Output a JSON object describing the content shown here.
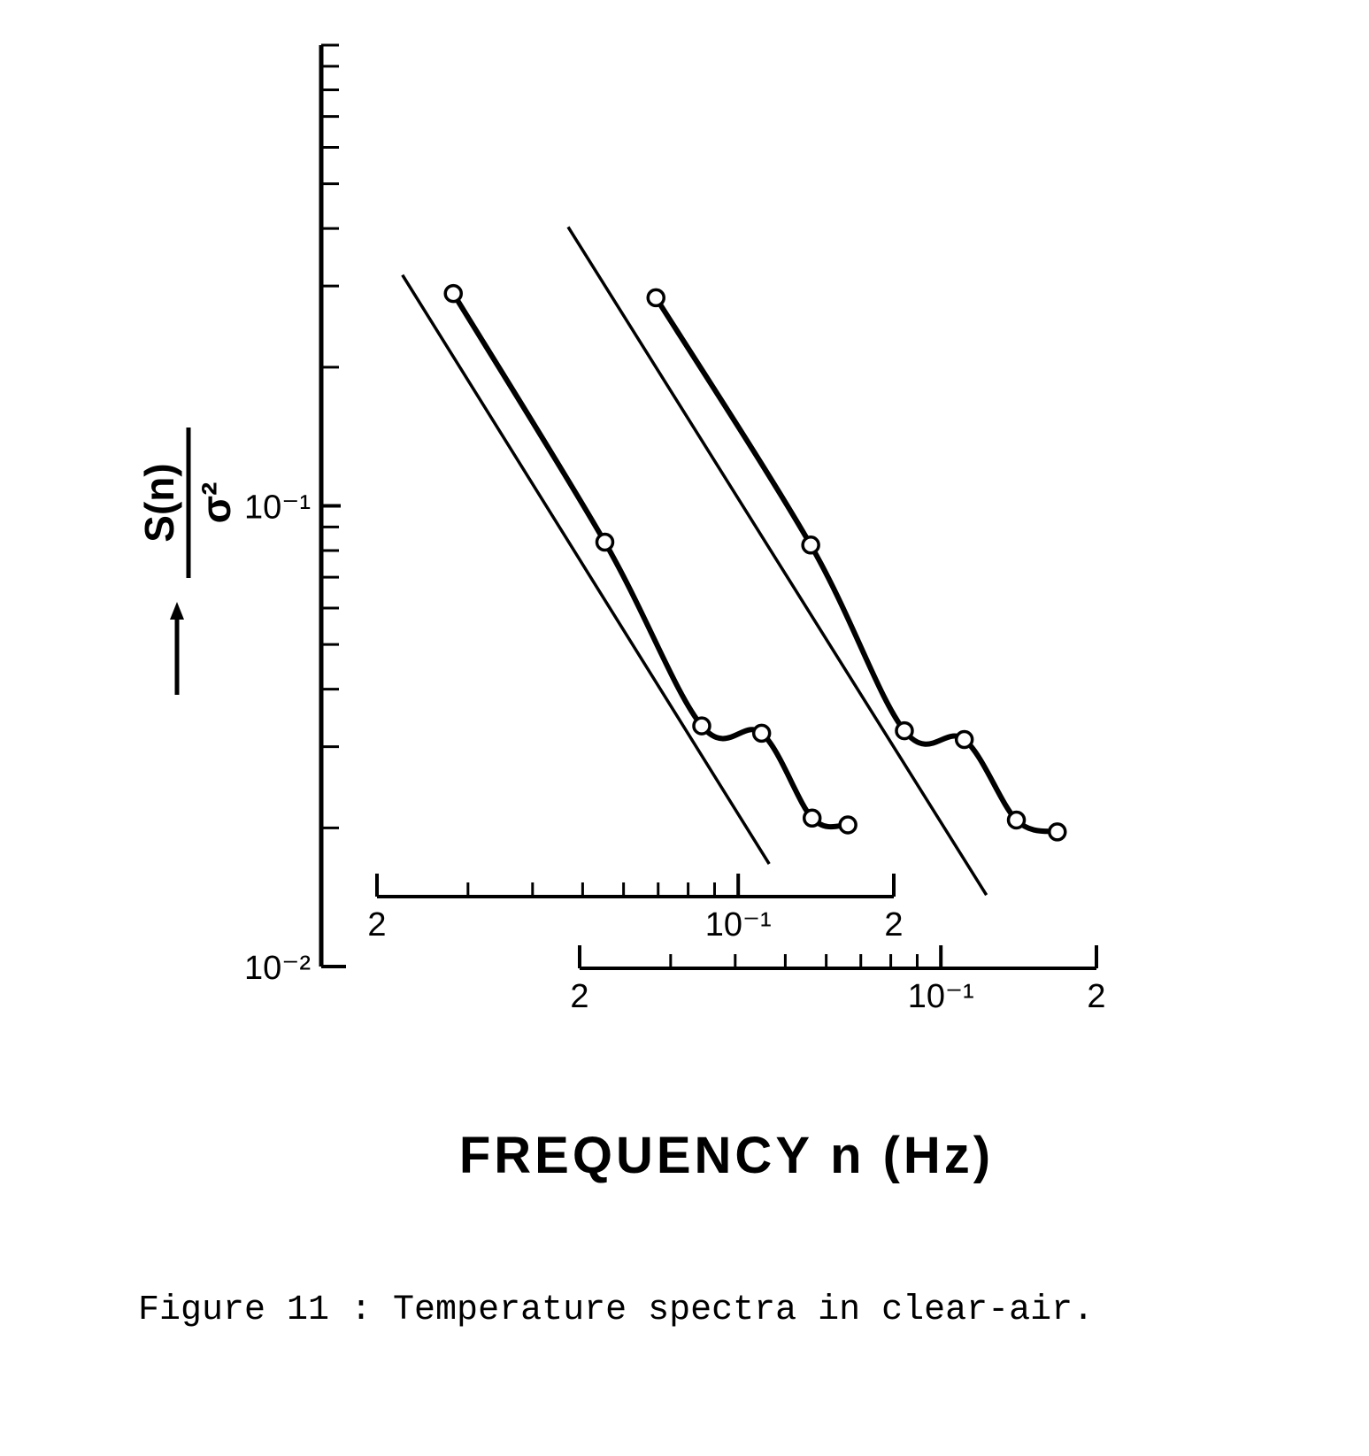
{
  "chart_data": {
    "type": "line",
    "log_x": true,
    "log_y": true,
    "xlabel": "FREQUENCY n (Hz)",
    "ylabel": {
      "numerator": "S(n)",
      "denominator": "σ²"
    },
    "caption": "Figure 11 : Temperature spectra in clear-air.",
    "ylim": [
      0.01,
      1
    ],
    "yticks": [
      {
        "value": 0.1,
        "label": "10⁻¹"
      },
      {
        "value": 0.01,
        "label": "10⁻²"
      }
    ],
    "yminorticks": [
      0.02,
      0.03,
      0.04,
      0.05,
      0.06,
      0.07,
      0.08,
      0.09,
      0.2,
      0.3,
      0.4,
      0.5,
      0.6,
      0.7,
      0.8,
      0.9,
      1
    ],
    "x_axes": [
      {
        "xlim": [
          0.02,
          0.2
        ],
        "xticks": [
          {
            "value": 0.02,
            "label": "2"
          },
          {
            "value": 0.1,
            "label": "10⁻¹"
          },
          {
            "value": 0.2,
            "label": "2"
          }
        ],
        "xminorticks": [
          0.03,
          0.04,
          0.05,
          0.06,
          0.07,
          0.08,
          0.09
        ]
      },
      {
        "xlim": [
          0.02,
          0.2
        ],
        "xticks": [
          {
            "value": 0.02,
            "label": "2"
          },
          {
            "value": 0.1,
            "label": "10⁻¹"
          },
          {
            "value": 0.2,
            "label": "2"
          }
        ],
        "xminorticks": [
          0.03,
          0.04,
          0.05,
          0.06,
          0.07,
          0.08,
          0.09
        ]
      }
    ],
    "series": [
      {
        "xaxis": 0,
        "markers": true,
        "color": "#000000",
        "x": [
          0.0281,
          0.0552,
          0.085,
          0.111,
          0.139,
          0.163
        ],
        "values": [
          0.289,
          0.0834,
          0.0333,
          0.0321,
          0.021,
          0.0203
        ]
      },
      {
        "xaxis": 0,
        "markers": false,
        "color": "#000000",
        "x": [
          0.0224,
          0.1148
        ],
        "values": [
          0.317,
          0.0167
        ]
      },
      {
        "xaxis": 1,
        "markers": true,
        "color": "#000000",
        "x": [
          0.0281,
          0.056,
          0.085,
          0.111,
          0.14,
          0.168
        ],
        "values": [
          0.283,
          0.0822,
          0.0325,
          0.0311,
          0.0208,
          0.0196
        ]
      },
      {
        "xaxis": 1,
        "markers": false,
        "color": "#000000",
        "x": [
          0.019,
          0.1225
        ],
        "values": [
          0.403,
          0.0143
        ]
      }
    ]
  }
}
